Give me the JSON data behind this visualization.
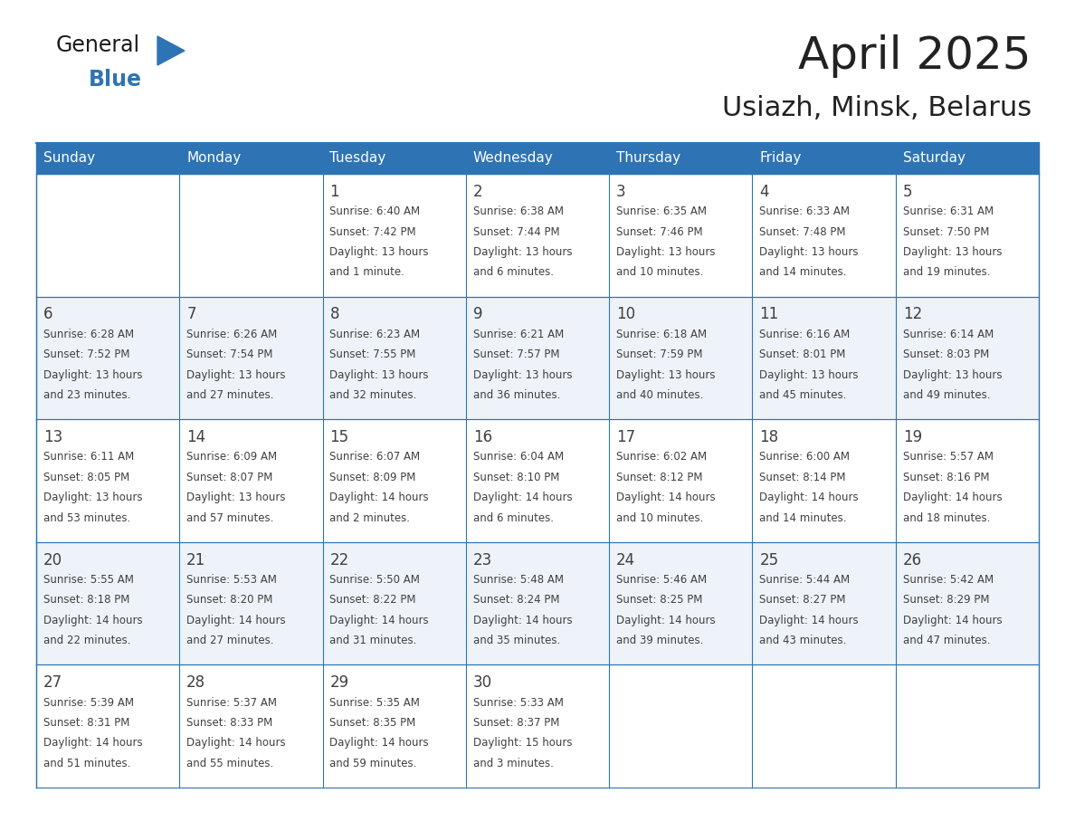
{
  "title": "April 2025",
  "subtitle": "Usiazh, Minsk, Belarus",
  "header_bg_color": "#2E74B5",
  "header_text_color": "#FFFFFF",
  "day_names": [
    "Sunday",
    "Monday",
    "Tuesday",
    "Wednesday",
    "Thursday",
    "Friday",
    "Saturday"
  ],
  "bg_color": "#FFFFFF",
  "cell_border_color": "#2E74B5",
  "odd_row_bg": "#FFFFFF",
  "even_row_bg": "#EEF3F9",
  "text_color": "#404040",
  "title_color": "#222222",
  "logo_general_color": "#1A1A1A",
  "logo_blue_color": "#2E74B5",
  "weeks": [
    [
      {
        "day": "",
        "info": ""
      },
      {
        "day": "",
        "info": ""
      },
      {
        "day": "1",
        "info": "Sunrise: 6:40 AM\nSunset: 7:42 PM\nDaylight: 13 hours\nand 1 minute."
      },
      {
        "day": "2",
        "info": "Sunrise: 6:38 AM\nSunset: 7:44 PM\nDaylight: 13 hours\nand 6 minutes."
      },
      {
        "day": "3",
        "info": "Sunrise: 6:35 AM\nSunset: 7:46 PM\nDaylight: 13 hours\nand 10 minutes."
      },
      {
        "day": "4",
        "info": "Sunrise: 6:33 AM\nSunset: 7:48 PM\nDaylight: 13 hours\nand 14 minutes."
      },
      {
        "day": "5",
        "info": "Sunrise: 6:31 AM\nSunset: 7:50 PM\nDaylight: 13 hours\nand 19 minutes."
      }
    ],
    [
      {
        "day": "6",
        "info": "Sunrise: 6:28 AM\nSunset: 7:52 PM\nDaylight: 13 hours\nand 23 minutes."
      },
      {
        "day": "7",
        "info": "Sunrise: 6:26 AM\nSunset: 7:54 PM\nDaylight: 13 hours\nand 27 minutes."
      },
      {
        "day": "8",
        "info": "Sunrise: 6:23 AM\nSunset: 7:55 PM\nDaylight: 13 hours\nand 32 minutes."
      },
      {
        "day": "9",
        "info": "Sunrise: 6:21 AM\nSunset: 7:57 PM\nDaylight: 13 hours\nand 36 minutes."
      },
      {
        "day": "10",
        "info": "Sunrise: 6:18 AM\nSunset: 7:59 PM\nDaylight: 13 hours\nand 40 minutes."
      },
      {
        "day": "11",
        "info": "Sunrise: 6:16 AM\nSunset: 8:01 PM\nDaylight: 13 hours\nand 45 minutes."
      },
      {
        "day": "12",
        "info": "Sunrise: 6:14 AM\nSunset: 8:03 PM\nDaylight: 13 hours\nand 49 minutes."
      }
    ],
    [
      {
        "day": "13",
        "info": "Sunrise: 6:11 AM\nSunset: 8:05 PM\nDaylight: 13 hours\nand 53 minutes."
      },
      {
        "day": "14",
        "info": "Sunrise: 6:09 AM\nSunset: 8:07 PM\nDaylight: 13 hours\nand 57 minutes."
      },
      {
        "day": "15",
        "info": "Sunrise: 6:07 AM\nSunset: 8:09 PM\nDaylight: 14 hours\nand 2 minutes."
      },
      {
        "day": "16",
        "info": "Sunrise: 6:04 AM\nSunset: 8:10 PM\nDaylight: 14 hours\nand 6 minutes."
      },
      {
        "day": "17",
        "info": "Sunrise: 6:02 AM\nSunset: 8:12 PM\nDaylight: 14 hours\nand 10 minutes."
      },
      {
        "day": "18",
        "info": "Sunrise: 6:00 AM\nSunset: 8:14 PM\nDaylight: 14 hours\nand 14 minutes."
      },
      {
        "day": "19",
        "info": "Sunrise: 5:57 AM\nSunset: 8:16 PM\nDaylight: 14 hours\nand 18 minutes."
      }
    ],
    [
      {
        "day": "20",
        "info": "Sunrise: 5:55 AM\nSunset: 8:18 PM\nDaylight: 14 hours\nand 22 minutes."
      },
      {
        "day": "21",
        "info": "Sunrise: 5:53 AM\nSunset: 8:20 PM\nDaylight: 14 hours\nand 27 minutes."
      },
      {
        "day": "22",
        "info": "Sunrise: 5:50 AM\nSunset: 8:22 PM\nDaylight: 14 hours\nand 31 minutes."
      },
      {
        "day": "23",
        "info": "Sunrise: 5:48 AM\nSunset: 8:24 PM\nDaylight: 14 hours\nand 35 minutes."
      },
      {
        "day": "24",
        "info": "Sunrise: 5:46 AM\nSunset: 8:25 PM\nDaylight: 14 hours\nand 39 minutes."
      },
      {
        "day": "25",
        "info": "Sunrise: 5:44 AM\nSunset: 8:27 PM\nDaylight: 14 hours\nand 43 minutes."
      },
      {
        "day": "26",
        "info": "Sunrise: 5:42 AM\nSunset: 8:29 PM\nDaylight: 14 hours\nand 47 minutes."
      }
    ],
    [
      {
        "day": "27",
        "info": "Sunrise: 5:39 AM\nSunset: 8:31 PM\nDaylight: 14 hours\nand 51 minutes."
      },
      {
        "day": "28",
        "info": "Sunrise: 5:37 AM\nSunset: 8:33 PM\nDaylight: 14 hours\nand 55 minutes."
      },
      {
        "day": "29",
        "info": "Sunrise: 5:35 AM\nSunset: 8:35 PM\nDaylight: 14 hours\nand 59 minutes."
      },
      {
        "day": "30",
        "info": "Sunrise: 5:33 AM\nSunset: 8:37 PM\nDaylight: 15 hours\nand 3 minutes."
      },
      {
        "day": "",
        "info": ""
      },
      {
        "day": "",
        "info": ""
      },
      {
        "day": "",
        "info": ""
      }
    ]
  ]
}
